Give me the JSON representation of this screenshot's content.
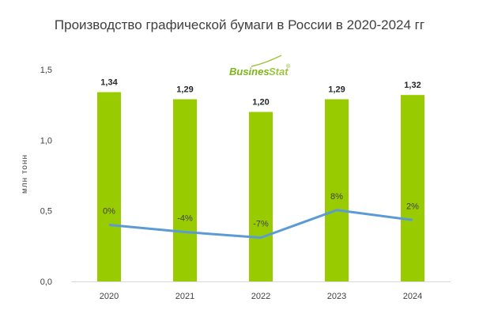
{
  "brand": {
    "name_part1": "Busines",
    "name_part2": "Stat",
    "mark": "®",
    "color_primary": "#7cb518",
    "color_secondary": "#9bc53d"
  },
  "colors": {
    "bar": "#99cc00",
    "line": "#5b9bd5",
    "text": "#404040",
    "axis": "#d9d9d9"
  },
  "chart_data": {
    "type": "bar",
    "title": "Производство графической бумаги в России в 2020-2024 гг",
    "ylabel": "млн тонн",
    "xlabel": "",
    "categories": [
      "2020",
      "2021",
      "2022",
      "2023",
      "2024"
    ],
    "series": [
      {
        "values": [
          1.34,
          1.29,
          1.2,
          1.29,
          1.32
        ],
        "labels": [
          "1,34",
          "1,29",
          "1,20",
          "1,29",
          "1,32"
        ]
      }
    ],
    "line_series": {
      "type": "line",
      "values": [
        0,
        -4,
        -7,
        8,
        2
      ],
      "labels": [
        "0%",
        "-4%",
        "-7%",
        "8%",
        "2%"
      ],
      "plot_level": [
        0.4,
        0.35,
        0.31,
        0.505,
        0.435
      ]
    },
    "ylim": [
      0,
      1.5
    ],
    "yticks": [
      0,
      0.5,
      1.0,
      1.5
    ],
    "ytick_labels": [
      "0,0",
      "0,5",
      "1,0",
      "1,5"
    ],
    "grid": false,
    "legend": "none"
  }
}
